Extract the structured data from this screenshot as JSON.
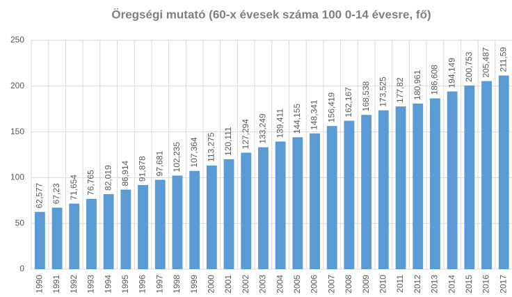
{
  "chart_data": {
    "type": "bar",
    "title": "Öregségi mutató (60-x évesek száma 100 0-14 évesre, fő)",
    "categories": [
      "1990",
      "1991",
      "1992",
      "1993",
      "1994",
      "1995",
      "1996",
      "1997",
      "1998",
      "1999",
      "2000",
      "2001",
      "2002",
      "2003",
      "2004",
      "2005",
      "2006",
      "2007",
      "2008",
      "2009",
      "2010",
      "2011",
      "2012",
      "2013",
      "2014",
      "2015",
      "2016",
      "2017"
    ],
    "values": [
      62.577,
      67.23,
      71.654,
      76.765,
      82.019,
      86.914,
      91.878,
      97.681,
      102.235,
      107.364,
      113.275,
      120.111,
      127.294,
      133.249,
      139.411,
      144.155,
      148.341,
      156.419,
      162.167,
      168.538,
      173.525,
      177.82,
      180.961,
      186.608,
      194.149,
      200.753,
      205.487,
      211.59
    ],
    "value_labels": [
      "62,577",
      "67,23",
      "71,654",
      "76,765",
      "82,019",
      "86,914",
      "91,878",
      "97,681",
      "102,235",
      "107,364",
      "113,275",
      "120,111",
      "127,294",
      "133,249",
      "139,411",
      "144,155",
      "148,341",
      "156,419",
      "162,167",
      "168,538",
      "173,525",
      "177,82",
      "180,961",
      "186,608",
      "194,149",
      "200,753",
      "205,487",
      "211,59"
    ],
    "color": "#5b9bd5",
    "ylim": [
      0,
      250
    ],
    "yticks": [
      0,
      50,
      100,
      150,
      200,
      250
    ],
    "grid": true
  }
}
